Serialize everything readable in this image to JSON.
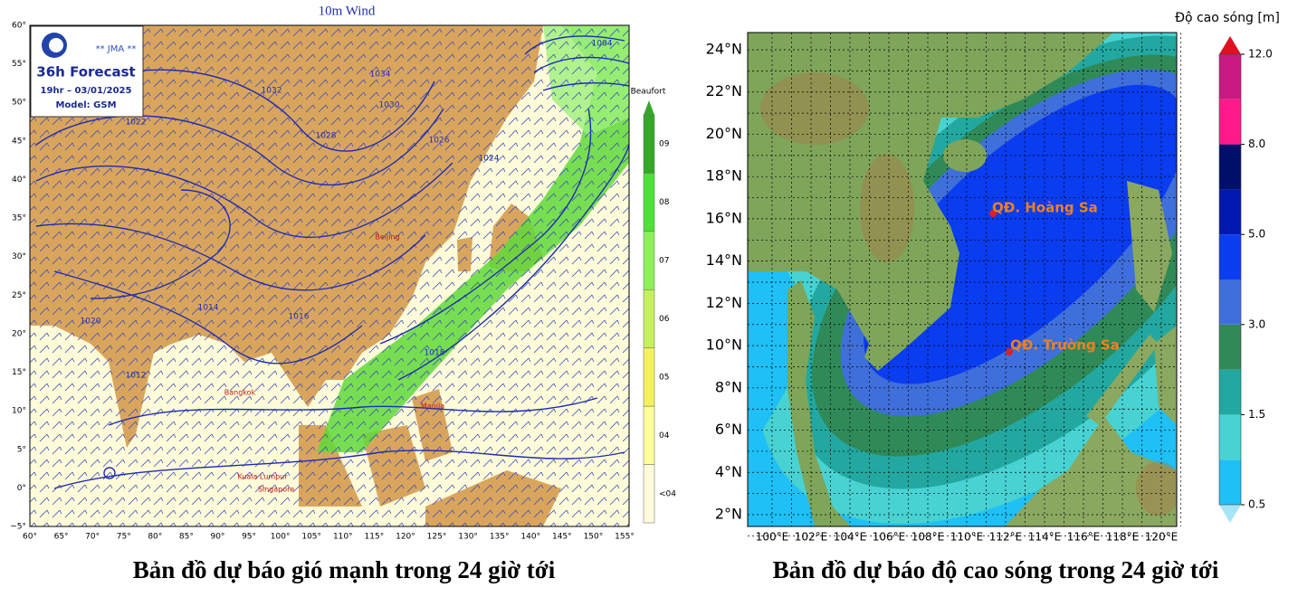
{
  "left_map": {
    "title": "10m Wind",
    "logo": {
      "agency": "** JMA **",
      "forecast": "36h Forecast",
      "time": "19hr – 03/01/2025",
      "model": "Model: GSM"
    },
    "lat_labels": [
      "60°",
      "55°",
      "50°",
      "45°",
      "40°",
      "35°",
      "30°",
      "25°",
      "20°",
      "15°",
      "10°",
      "5°",
      "0°",
      "−5°"
    ],
    "lon_labels": [
      "60°",
      "65°",
      "70°",
      "75°",
      "80°",
      "85°",
      "90°",
      "95°",
      "100°",
      "105°",
      "110°",
      "115°",
      "120°",
      "125°",
      "130°",
      "135°",
      "140°",
      "145°",
      "150°",
      "155°"
    ],
    "isobar_labels": [
      "1034",
      "1032",
      "1030",
      "1028",
      "1026",
      "1024",
      "1022",
      "1020",
      "1018",
      "1016",
      "1014",
      "1012",
      "1004"
    ],
    "city_labels": [
      "Beijing",
      "Bangkok",
      "Manila",
      "Kuala Lumpur",
      "Singapore"
    ],
    "colorbar": {
      "title": "Beaufort",
      "labels": [
        "09",
        "08",
        "07",
        "06",
        "05",
        "04",
        "<04"
      ],
      "colors": [
        "#35a82a",
        "#4fe03a",
        "#8ef05a",
        "#c6f060",
        "#f4f060",
        "#ffff9c",
        "#fffbdc"
      ]
    },
    "caption": "Bản đồ dự báo gió mạnh trong 24 giờ tới"
  },
  "right_map": {
    "lat_labels": [
      "24°N",
      "22°N",
      "20°N",
      "18°N",
      "16°N",
      "14°N",
      "12°N",
      "10°N",
      "8°N",
      "6°N",
      "4°N",
      "2°N"
    ],
    "lon_labels": [
      "100°E",
      "102°E",
      "104°E",
      "106°E",
      "108°E",
      "110°E",
      "112°E",
      "114°E",
      "116°E",
      "118°E",
      "120°E"
    ],
    "places": [
      "QĐ. Hoàng Sa",
      "QĐ. Trường Sa"
    ],
    "colorbar": {
      "title": "Độ cao sóng [m]",
      "ticks": [
        {
          "value": 0.5,
          "label": "0.5"
        },
        {
          "value": 1.5,
          "label": "1.5"
        },
        {
          "value": 3.0,
          "label": "3.0"
        },
        {
          "value": 5.0,
          "label": "5.0"
        },
        {
          "value": 8.0,
          "label": "8.0"
        },
        {
          "value": 12.0,
          "label": "12.0"
        }
      ],
      "colors": [
        "#1ec0f5",
        "#48d2d2",
        "#22a8a0",
        "#2f8a58",
        "#3f6fda",
        "#0a3cf0",
        "#0018b0",
        "#00106a",
        "#ff1a8c",
        "#c81a82"
      ]
    },
    "caption": "Bản đồ dự báo độ cao sóng trong 24 giờ tới"
  }
}
